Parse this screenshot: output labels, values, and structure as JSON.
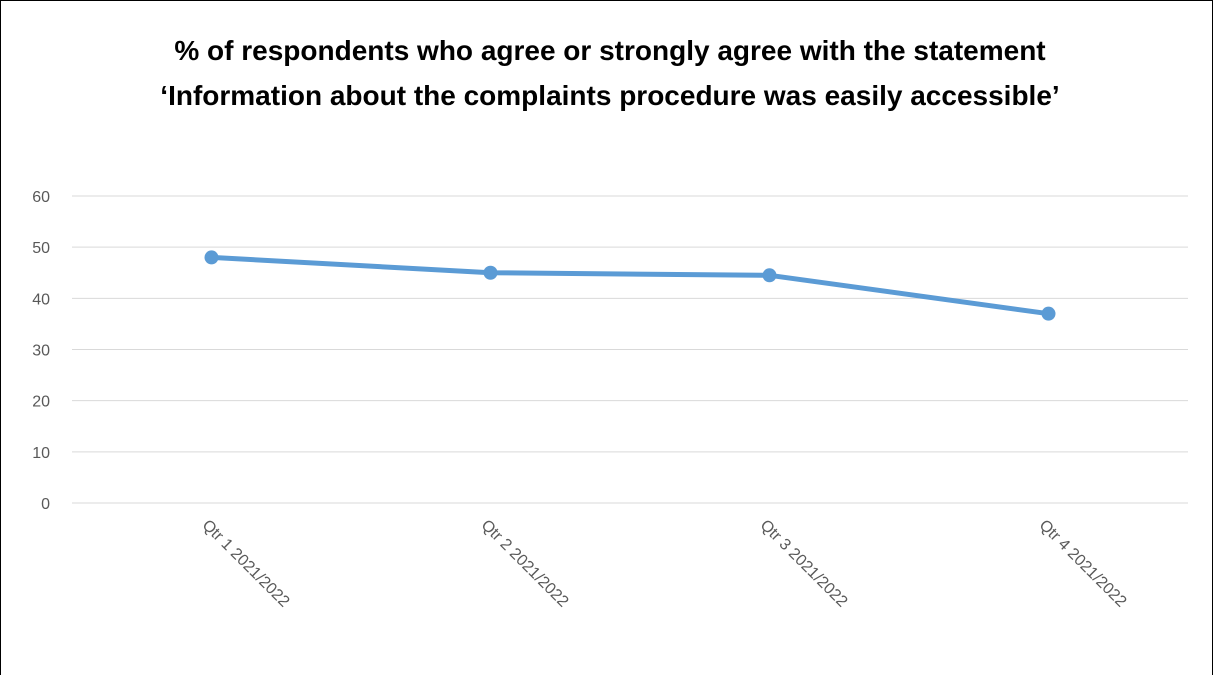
{
  "chart_data": {
    "type": "line",
    "title": "% of respondents who agree or strongly agree with the statement ‘Information about the complaints procedure was easily accessible’",
    "xlabel": "",
    "ylabel": "",
    "categories": [
      "Qtr 1 2021/2022",
      "Qtr 2 2021/2022",
      "Qtr 3 2021/2022",
      "Qtr 4 2021/2022"
    ],
    "series": [
      {
        "values": [
          48,
          45,
          44.5,
          37
        ]
      }
    ],
    "ylim": [
      0,
      60
    ],
    "yticks": [
      "0",
      "10",
      "20",
      "30",
      "40",
      "50",
      "60"
    ],
    "grid": true,
    "legend": "none",
    "colors": {
      "line": "#5B9BD5",
      "grid": "#D9D9D9",
      "text": "#595959"
    }
  }
}
